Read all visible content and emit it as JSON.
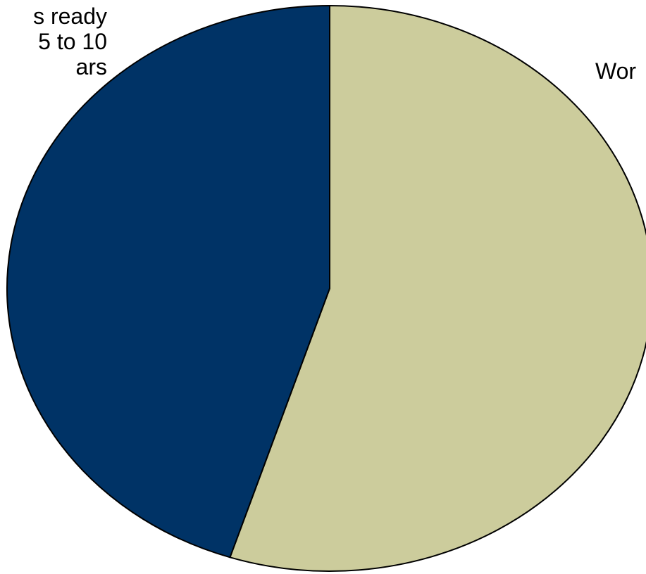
{
  "chart_data": {
    "type": "pie",
    "title": "",
    "slices": [
      {
        "label_lines": [
          "Wor"
        ],
        "value": 55,
        "color": "#CCCC9C"
      },
      {
        "label_lines": [
          "s ready",
          "5 to 10",
          "ars"
        ],
        "value": 45,
        "color": "#003366"
      }
    ],
    "start_angle_deg": 0,
    "direction": "clockwise",
    "outline_color": "#000000",
    "legend": "none"
  }
}
